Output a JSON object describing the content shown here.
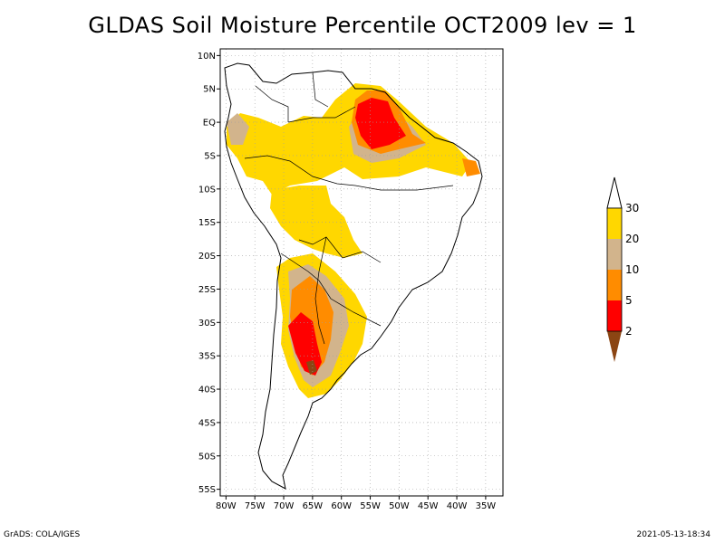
{
  "title": "GLDAS Soil Moisture Percentile OCT2009 lev = 1",
  "footer": {
    "left": "GrADS: COLA/IGES",
    "right": "2021-05-13-18:34"
  },
  "map": {
    "lon_range": [
      -81,
      -32
    ],
    "lat_range": [
      -56,
      11
    ],
    "lat_labels": [
      "10N",
      "5N",
      "EQ",
      "5S",
      "10S",
      "15S",
      "20S",
      "25S",
      "30S",
      "35S",
      "40S",
      "45S",
      "50S",
      "55S"
    ],
    "lat_values": [
      10,
      5,
      0,
      -5,
      -10,
      -15,
      -20,
      -25,
      -30,
      -35,
      -40,
      -45,
      -50,
      -55
    ],
    "lon_labels": [
      "80W",
      "75W",
      "70W",
      "65W",
      "60W",
      "55W",
      "50W",
      "45W",
      "40W",
      "35W"
    ],
    "lon_values": [
      -80,
      -75,
      -70,
      -65,
      -60,
      -55,
      -50,
      -45,
      -40,
      -35
    ]
  },
  "colorbar": {
    "labels": [
      "2",
      "5",
      "10",
      "20",
      "30"
    ],
    "colors": [
      "#8b4513",
      "#ff0000",
      "#ff8c00",
      "#d2b48c",
      "#ffd700",
      "#ffffff"
    ]
  },
  "colors": {
    "land_outline": "#000000",
    "grid": "#a0a0a0"
  }
}
